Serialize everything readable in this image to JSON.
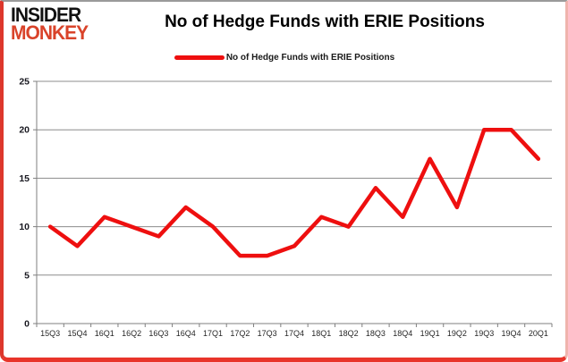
{
  "header": {
    "logo_line1": "INSIDER",
    "logo_line2": "MONKEY",
    "title": "No of Hedge Funds with ERIE Positions"
  },
  "legend": {
    "label": "No of Hedge Funds with ERIE Positions"
  },
  "chart_data": {
    "type": "line",
    "title": "No of Hedge Funds with ERIE Positions",
    "categories": [
      "15Q3",
      "15Q4",
      "16Q1",
      "16Q2",
      "16Q3",
      "16Q4",
      "17Q1",
      "17Q2",
      "17Q3",
      "17Q4",
      "18Q1",
      "18Q2",
      "18Q3",
      "18Q4",
      "19Q1",
      "19Q2",
      "19Q3",
      "19Q4",
      "20Q1"
    ],
    "series": [
      {
        "name": "No of Hedge Funds with ERIE Positions",
        "values": [
          10,
          8,
          11,
          10,
          9,
          12,
          10,
          7,
          7,
          8,
          11,
          10,
          14,
          11,
          17,
          12,
          20,
          20,
          17
        ]
      }
    ],
    "xlabel": "",
    "ylabel": "",
    "ylim": [
      0,
      25
    ],
    "yticks": [
      0,
      5,
      10,
      15,
      20,
      25
    ],
    "grid": true,
    "legend_position": "top"
  },
  "colors": {
    "line_red": "#ee0f0f",
    "logo_red": "#d9432a",
    "grid_gray": "#8c8c8c",
    "axis_gray": "#7f7f7f",
    "tick_label_dark": "#262626",
    "y_label_dark": "#17171f",
    "frame_red": "#e0362b"
  }
}
